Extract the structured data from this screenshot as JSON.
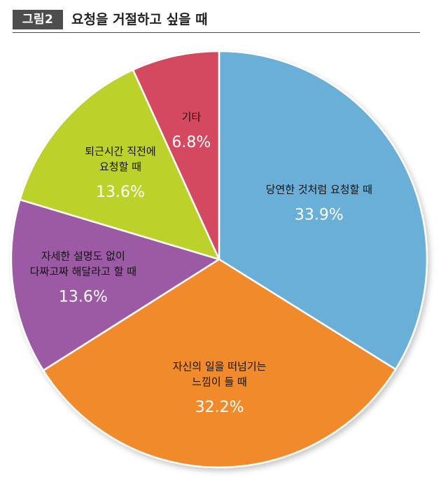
{
  "header": {
    "figure_label": "그림2",
    "title": "요청을 거절하고 싶을 때"
  },
  "chart_data": {
    "type": "pie",
    "title": "요청을 거절하고 싶을 때",
    "slices": [
      {
        "label_lines": [
          "당연한 것처럼 요청할 때"
        ],
        "value": 33.9,
        "value_text": "33.9%",
        "color": "#6aafd8"
      },
      {
        "label_lines": [
          "자신의 일을 떠넘기는",
          "느낌이 들 때"
        ],
        "value": 32.2,
        "value_text": "32.2%",
        "color": "#f08a2a"
      },
      {
        "label_lines": [
          "자세한 설명도 없이",
          "다짜고짜 해달라고 할 때"
        ],
        "value": 13.6,
        "value_text": "13.6%",
        "color": "#9b5aa3"
      },
      {
        "label_lines": [
          "퇴근시간 직전에",
          "요청할 때"
        ],
        "value": 13.6,
        "value_text": "13.6%",
        "color": "#bcd12c"
      },
      {
        "label_lines": [
          "기타"
        ],
        "value": 6.8,
        "value_text": "6.8%",
        "color": "#d44a5e"
      }
    ]
  }
}
